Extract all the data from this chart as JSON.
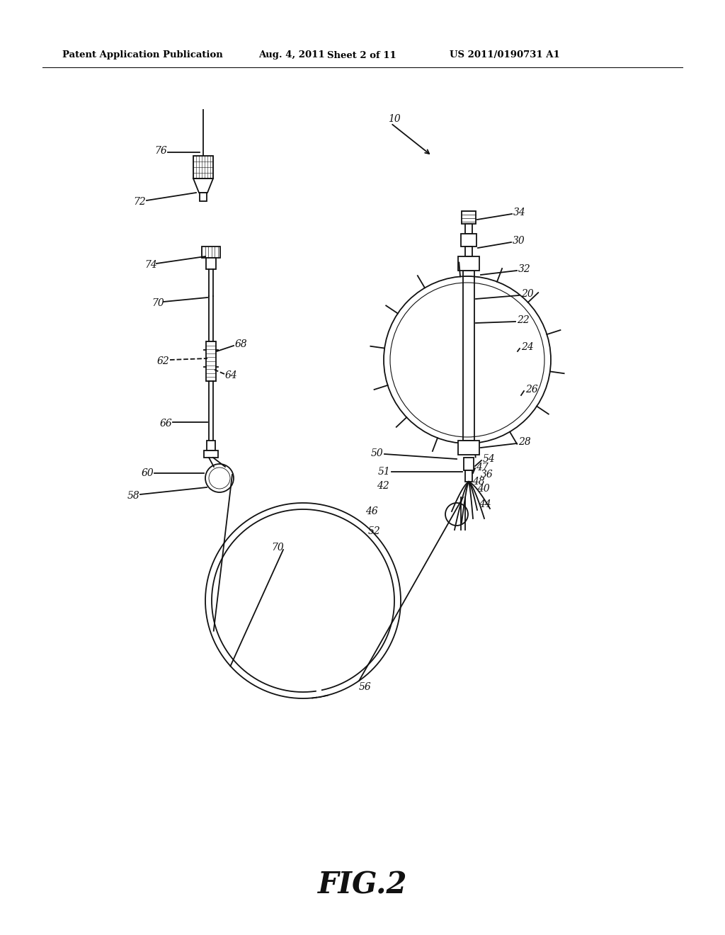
{
  "bg_color": "#ffffff",
  "header_left": "Patent Application Publication",
  "header_mid1": "Aug. 4, 2011",
  "header_mid2": "Sheet 2 of 11",
  "header_right": "US 2011/0190731 A1",
  "fig_label": "FIG.2",
  "line_color": "#111111"
}
